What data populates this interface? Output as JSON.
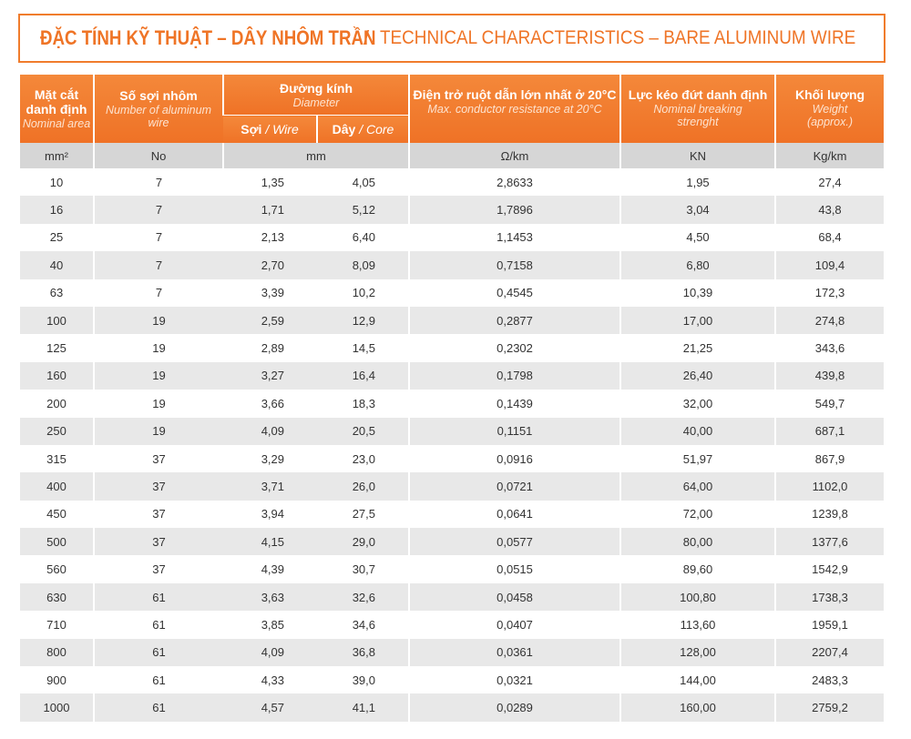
{
  "title": {
    "vi": "ĐẶC TÍNH KỸ THUẬT – DÂY NHÔM TRẦN",
    "separator": "/",
    "en": "TECHNICAL CHARACTERISTICS – BARE ALUMINUM WIRE"
  },
  "table": {
    "header": {
      "area": {
        "vi": "Mặt cắt danh định",
        "en": "Nominal area"
      },
      "strands": {
        "vi": "Số sợi nhôm",
        "en": "Number of aluminum wire"
      },
      "diameter": {
        "vi": "Đường kính",
        "en": "Diameter",
        "wire": {
          "vi": "Sợi",
          "separator": "/",
          "en": "Wire"
        },
        "core": {
          "vi": "Dây",
          "separator": "/",
          "en": "Core"
        }
      },
      "resistance": {
        "vi": "Điện trở ruột dẫn lớn nhất ở 20°C",
        "en": "Max. conductor resistance at 20°C"
      },
      "breaking": {
        "vi": "Lực kéo đứt danh định",
        "en": "Nominal breaking strenght"
      },
      "weight": {
        "vi": "Khối lượng",
        "en": "Weight (approx.)"
      }
    },
    "units": [
      "mm²",
      "No",
      "mm",
      "Ω/km",
      "KN",
      "Kg/km"
    ],
    "rows": [
      [
        "10",
        "7",
        "1,35",
        "4,05",
        "2,8633",
        "1,95",
        "27,4"
      ],
      [
        "16",
        "7",
        "1,71",
        "5,12",
        "1,7896",
        "3,04",
        "43,8"
      ],
      [
        "25",
        "7",
        "2,13",
        "6,40",
        "1,1453",
        "4,50",
        "68,4"
      ],
      [
        "40",
        "7",
        "2,70",
        "8,09",
        "0,7158",
        "6,80",
        "109,4"
      ],
      [
        "63",
        "7",
        "3,39",
        "10,2",
        "0,4545",
        "10,39",
        "172,3"
      ],
      [
        "100",
        "19",
        "2,59",
        "12,9",
        "0,2877",
        "17,00",
        "274,8"
      ],
      [
        "125",
        "19",
        "2,89",
        "14,5",
        "0,2302",
        "21,25",
        "343,6"
      ],
      [
        "160",
        "19",
        "3,27",
        "16,4",
        "0,1798",
        "26,40",
        "439,8"
      ],
      [
        "200",
        "19",
        "3,66",
        "18,3",
        "0,1439",
        "32,00",
        "549,7"
      ],
      [
        "250",
        "19",
        "4,09",
        "20,5",
        "0,1151",
        "40,00",
        "687,1"
      ],
      [
        "315",
        "37",
        "3,29",
        "23,0",
        "0,0916",
        "51,97",
        "867,9"
      ],
      [
        "400",
        "37",
        "3,71",
        "26,0",
        "0,0721",
        "64,00",
        "1102,0"
      ],
      [
        "450",
        "37",
        "3,94",
        "27,5",
        "0,0641",
        "72,00",
        "1239,8"
      ],
      [
        "500",
        "37",
        "4,15",
        "29,0",
        "0,0577",
        "80,00",
        "1377,6"
      ],
      [
        "560",
        "37",
        "4,39",
        "30,7",
        "0,0515",
        "89,60",
        "1542,9"
      ],
      [
        "630",
        "61",
        "3,63",
        "32,6",
        "0,0458",
        "100,80",
        "1738,3"
      ],
      [
        "710",
        "61",
        "3,85",
        "34,6",
        "0,0407",
        "113,60",
        "1959,1"
      ],
      [
        "800",
        "61",
        "4,09",
        "36,8",
        "0,0361",
        "128,00",
        "2207,4"
      ],
      [
        "900",
        "61",
        "4,33",
        "39,0",
        "0,0321",
        "144,00",
        "2483,3"
      ],
      [
        "1000",
        "61",
        "4,57",
        "41,1",
        "0,0289",
        "160,00",
        "2759,2"
      ]
    ]
  }
}
